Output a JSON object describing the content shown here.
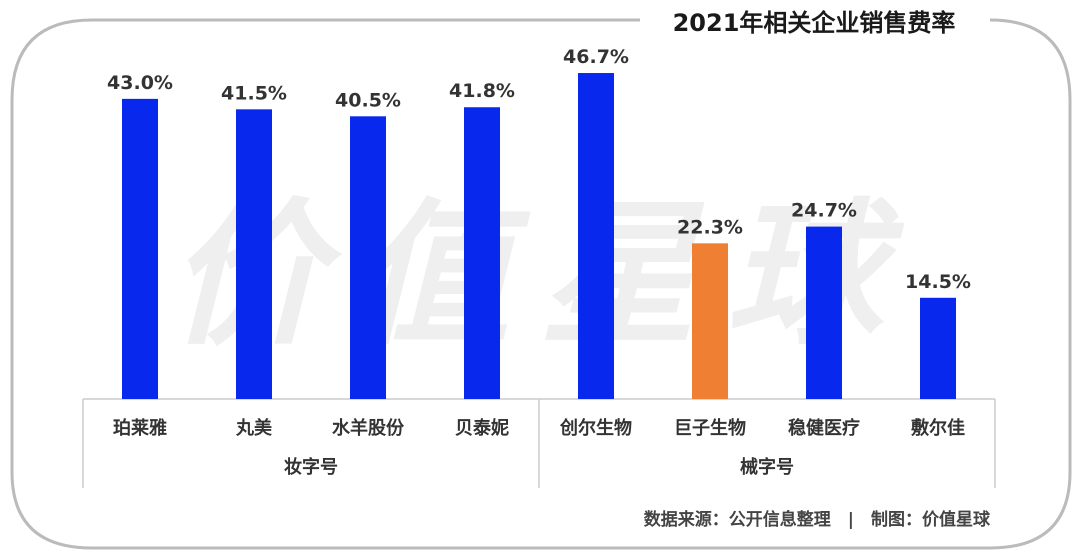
{
  "title": "2021年相关企业销售费率",
  "watermark": "价值星球",
  "source": "数据来源：公开信息整理　|　制图：价值星球",
  "colors": {
    "bar_default": "#0828ee",
    "bar_highlight": "#ef7f33",
    "frame": "#bbbbbb",
    "axis": "#cccccc",
    "text": "#333333"
  },
  "chart_data": {
    "type": "bar",
    "title": "2021年相关企业销售费率",
    "categories": [
      "珀莱雅",
      "丸美",
      "水羊股份",
      "贝泰妮",
      "创尔生物",
      "巨子生物",
      "稳健医疗",
      "敷尔佳"
    ],
    "values": [
      43.0,
      41.5,
      40.5,
      41.8,
      46.7,
      22.3,
      24.7,
      14.5
    ],
    "value_labels": [
      "43.0%",
      "41.5%",
      "40.5%",
      "41.8%",
      "46.7%",
      "22.3%",
      "24.7%",
      "14.5%"
    ],
    "highlight_index": 5,
    "groups": [
      {
        "name": "妆字号",
        "start": 0,
        "end": 3
      },
      {
        "name": "械字号",
        "start": 4,
        "end": 7
      }
    ],
    "ylim": [
      0,
      50
    ],
    "grid": false,
    "xlabel": "",
    "ylabel": ""
  }
}
